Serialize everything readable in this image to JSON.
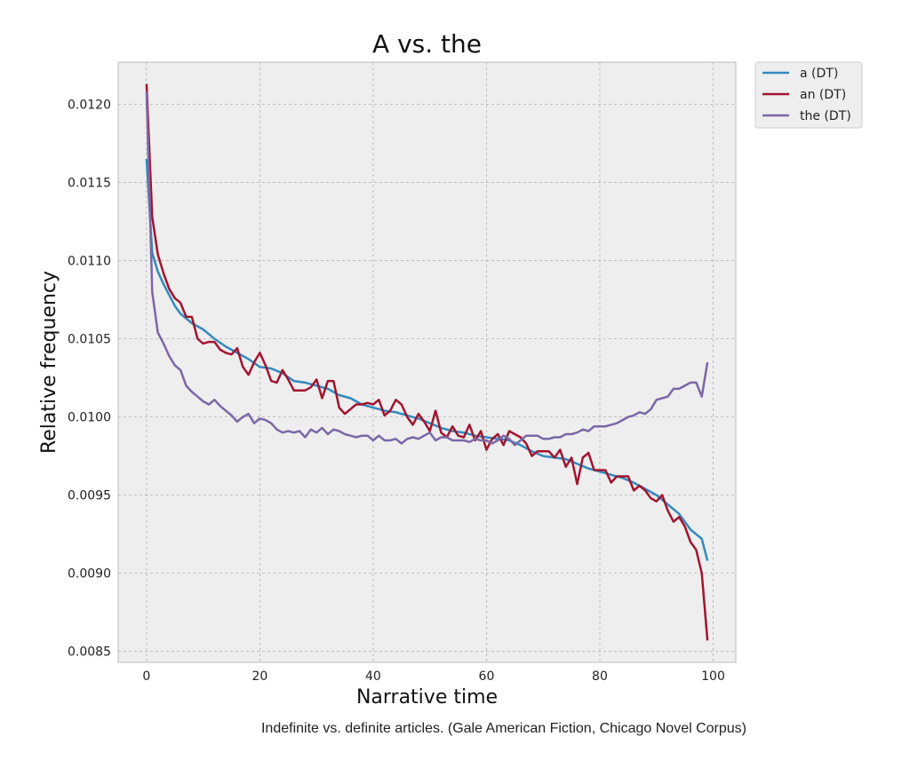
{
  "caption": "Indefinite vs. definite articles. (Gale American Fiction, Chicago Novel Corpus)",
  "chart_data": {
    "type": "line",
    "title": "A vs. the",
    "xlabel": "Narrative time",
    "ylabel": "Relative frequency",
    "xlim": [
      -5,
      104
    ],
    "ylim": [
      0.00843,
      0.01227
    ],
    "xticks": [
      0,
      20,
      40,
      60,
      80,
      100
    ],
    "xtick_labels": [
      "0",
      "20",
      "40",
      "60",
      "80",
      "100"
    ],
    "yticks": [
      0.0085,
      0.009,
      0.0095,
      0.01,
      0.0105,
      0.011,
      0.0115,
      0.012
    ],
    "ytick_labels": [
      "0.0085",
      "0.0090",
      "0.0095",
      "0.0100",
      "0.0105",
      "0.0110",
      "0.0115",
      "0.0120"
    ],
    "grid": true,
    "legend_position": "outside-top-right",
    "series": [
      {
        "name": "a (DT)",
        "color": "#348abd",
        "points": [
          [
            0,
            0.01165
          ],
          [
            1,
            0.01105
          ],
          [
            2,
            0.01093
          ],
          [
            3,
            0.01085
          ],
          [
            4,
            0.01078
          ],
          [
            5,
            0.01071
          ],
          [
            6,
            0.01066
          ],
          [
            8,
            0.0106
          ],
          [
            10,
            0.01056
          ],
          [
            12,
            0.0105
          ],
          [
            14,
            0.01045
          ],
          [
            16,
            0.01041
          ],
          [
            18,
            0.01037
          ],
          [
            20,
            0.01032
          ],
          [
            22,
            0.01031
          ],
          [
            24,
            0.01028
          ],
          [
            26,
            0.01023
          ],
          [
            28,
            0.01022
          ],
          [
            30,
            0.0102
          ],
          [
            32,
            0.01018
          ],
          [
            34,
            0.01014
          ],
          [
            36,
            0.01012
          ],
          [
            38,
            0.01008
          ],
          [
            40,
            0.01006
          ],
          [
            42,
            0.01004
          ],
          [
            44,
            0.01003
          ],
          [
            46,
            0.01001
          ],
          [
            48,
            0.00999
          ],
          [
            50,
            0.00996
          ],
          [
            52,
            0.00993
          ],
          [
            54,
            0.00991
          ],
          [
            56,
            0.0099
          ],
          [
            58,
            0.00988
          ],
          [
            60,
            0.00987
          ],
          [
            62,
            0.00986
          ],
          [
            64,
            0.00985
          ],
          [
            66,
            0.00982
          ],
          [
            68,
            0.00978
          ],
          [
            70,
            0.00975
          ],
          [
            72,
            0.00974
          ],
          [
            74,
            0.00973
          ],
          [
            76,
            0.0097
          ],
          [
            78,
            0.00967
          ],
          [
            80,
            0.00965
          ],
          [
            82,
            0.00963
          ],
          [
            84,
            0.00961
          ],
          [
            86,
            0.00958
          ],
          [
            88,
            0.00954
          ],
          [
            90,
            0.0095
          ],
          [
            92,
            0.00944
          ],
          [
            94,
            0.00938
          ],
          [
            96,
            0.00928
          ],
          [
            98,
            0.00922
          ],
          [
            99,
            0.00908
          ]
        ]
      },
      {
        "name": "an (DT)",
        "color": "#a2142f",
        "points": [
          [
            0,
            0.01213
          ],
          [
            1,
            0.01128
          ],
          [
            2,
            0.01104
          ],
          [
            3,
            0.01092
          ],
          [
            4,
            0.01082
          ],
          [
            5,
            0.01076
          ],
          [
            6,
            0.01073
          ],
          [
            7,
            0.01064
          ],
          [
            8,
            0.01064
          ],
          [
            9,
            0.0105
          ],
          [
            10,
            0.01047
          ],
          [
            11,
            0.01048
          ],
          [
            12,
            0.01048
          ],
          [
            13,
            0.01043
          ],
          [
            14,
            0.01041
          ],
          [
            15,
            0.0104
          ],
          [
            16,
            0.01044
          ],
          [
            17,
            0.01032
          ],
          [
            18,
            0.01027
          ],
          [
            19,
            0.01035
          ],
          [
            20,
            0.01041
          ],
          [
            21,
            0.01033
          ],
          [
            22,
            0.01023
          ],
          [
            23,
            0.01022
          ],
          [
            24,
            0.0103
          ],
          [
            25,
            0.01024
          ],
          [
            26,
            0.01017
          ],
          [
            27,
            0.01017
          ],
          [
            28,
            0.01017
          ],
          [
            29,
            0.01019
          ],
          [
            30,
            0.01024
          ],
          [
            31,
            0.01012
          ],
          [
            32,
            0.01023
          ],
          [
            33,
            0.01023
          ],
          [
            34,
            0.01006
          ],
          [
            35,
            0.01002
          ],
          [
            36,
            0.01005
          ],
          [
            37,
            0.01008
          ],
          [
            38,
            0.01008
          ],
          [
            39,
            0.01009
          ],
          [
            40,
            0.01008
          ],
          [
            41,
            0.01011
          ],
          [
            42,
            0.01001
          ],
          [
            43,
            0.01004
          ],
          [
            44,
            0.01011
          ],
          [
            45,
            0.01008
          ],
          [
            46,
            0.01
          ],
          [
            47,
            0.00995
          ],
          [
            48,
            0.01002
          ],
          [
            49,
            0.00997
          ],
          [
            50,
            0.00991
          ],
          [
            51,
            0.01004
          ],
          [
            52,
            0.0099
          ],
          [
            53,
            0.00987
          ],
          [
            54,
            0.00994
          ],
          [
            55,
            0.00988
          ],
          [
            56,
            0.00987
          ],
          [
            57,
            0.00995
          ],
          [
            58,
            0.00985
          ],
          [
            59,
            0.00991
          ],
          [
            60,
            0.00979
          ],
          [
            61,
            0.00986
          ],
          [
            62,
            0.00989
          ],
          [
            63,
            0.00982
          ],
          [
            64,
            0.00991
          ],
          [
            65,
            0.00989
          ],
          [
            66,
            0.00987
          ],
          [
            67,
            0.00983
          ],
          [
            68,
            0.00975
          ],
          [
            69,
            0.00978
          ],
          [
            70,
            0.00978
          ],
          [
            71,
            0.00978
          ],
          [
            72,
            0.00974
          ],
          [
            73,
            0.00979
          ],
          [
            74,
            0.00968
          ],
          [
            75,
            0.00974
          ],
          [
            76,
            0.00957
          ],
          [
            77,
            0.00974
          ],
          [
            78,
            0.00977
          ],
          [
            79,
            0.00966
          ],
          [
            80,
            0.00966
          ],
          [
            81,
            0.00966
          ],
          [
            82,
            0.00958
          ],
          [
            83,
            0.00962
          ],
          [
            84,
            0.00962
          ],
          [
            85,
            0.00962
          ],
          [
            86,
            0.00953
          ],
          [
            87,
            0.00956
          ],
          [
            88,
            0.00953
          ],
          [
            89,
            0.00948
          ],
          [
            90,
            0.00946
          ],
          [
            91,
            0.0095
          ],
          [
            92,
            0.0094
          ],
          [
            93,
            0.00933
          ],
          [
            94,
            0.00936
          ],
          [
            95,
            0.0093
          ],
          [
            96,
            0.0092
          ],
          [
            97,
            0.00915
          ],
          [
            98,
            0.009
          ],
          [
            99,
            0.00857
          ]
        ]
      },
      {
        "name": "the (DT)",
        "color": "#7a68a6",
        "points": [
          [
            0,
            0.01208
          ],
          [
            1,
            0.0108
          ],
          [
            2,
            0.01054
          ],
          [
            3,
            0.01047
          ],
          [
            4,
            0.01039
          ],
          [
            5,
            0.01033
          ],
          [
            6,
            0.0103
          ],
          [
            7,
            0.0102
          ],
          [
            8,
            0.01016
          ],
          [
            9,
            0.01013
          ],
          [
            10,
            0.0101
          ],
          [
            11,
            0.01008
          ],
          [
            12,
            0.01011
          ],
          [
            13,
            0.01007
          ],
          [
            14,
            0.01004
          ],
          [
            15,
            0.01001
          ],
          [
            16,
            0.00997
          ],
          [
            17,
            0.01
          ],
          [
            18,
            0.01002
          ],
          [
            19,
            0.00996
          ],
          [
            20,
            0.00999
          ],
          [
            21,
            0.00998
          ],
          [
            22,
            0.00996
          ],
          [
            23,
            0.00992
          ],
          [
            24,
            0.0099
          ],
          [
            25,
            0.00991
          ],
          [
            26,
            0.0099
          ],
          [
            27,
            0.00991
          ],
          [
            28,
            0.00987
          ],
          [
            29,
            0.00992
          ],
          [
            30,
            0.0099
          ],
          [
            31,
            0.00993
          ],
          [
            32,
            0.00989
          ],
          [
            33,
            0.00992
          ],
          [
            34,
            0.00991
          ],
          [
            35,
            0.00989
          ],
          [
            36,
            0.00988
          ],
          [
            37,
            0.00987
          ],
          [
            38,
            0.00988
          ],
          [
            39,
            0.00988
          ],
          [
            40,
            0.00985
          ],
          [
            41,
            0.00988
          ],
          [
            42,
            0.00985
          ],
          [
            43,
            0.00985
          ],
          [
            44,
            0.00986
          ],
          [
            45,
            0.00983
          ],
          [
            46,
            0.00986
          ],
          [
            47,
            0.00987
          ],
          [
            48,
            0.00986
          ],
          [
            49,
            0.00988
          ],
          [
            50,
            0.0099
          ],
          [
            51,
            0.00985
          ],
          [
            52,
            0.00987
          ],
          [
            53,
            0.00987
          ],
          [
            54,
            0.00985
          ],
          [
            55,
            0.00985
          ],
          [
            56,
            0.00985
          ],
          [
            57,
            0.00984
          ],
          [
            58,
            0.00986
          ],
          [
            59,
            0.00985
          ],
          [
            60,
            0.00985
          ],
          [
            61,
            0.00983
          ],
          [
            62,
            0.00985
          ],
          [
            63,
            0.00988
          ],
          [
            64,
            0.00986
          ],
          [
            65,
            0.00982
          ],
          [
            66,
            0.00985
          ],
          [
            67,
            0.00988
          ],
          [
            68,
            0.00988
          ],
          [
            69,
            0.00988
          ],
          [
            70,
            0.00986
          ],
          [
            71,
            0.00986
          ],
          [
            72,
            0.00987
          ],
          [
            73,
            0.00987
          ],
          [
            74,
            0.00989
          ],
          [
            75,
            0.00989
          ],
          [
            76,
            0.0099
          ],
          [
            77,
            0.00992
          ],
          [
            78,
            0.00991
          ],
          [
            79,
            0.00994
          ],
          [
            80,
            0.00994
          ],
          [
            81,
            0.00994
          ],
          [
            82,
            0.00995
          ],
          [
            83,
            0.00996
          ],
          [
            84,
            0.00998
          ],
          [
            85,
            0.01
          ],
          [
            86,
            0.01001
          ],
          [
            87,
            0.01003
          ],
          [
            88,
            0.01002
          ],
          [
            89,
            0.01005
          ],
          [
            90,
            0.01011
          ],
          [
            91,
            0.01012
          ],
          [
            92,
            0.01013
          ],
          [
            93,
            0.01018
          ],
          [
            94,
            0.01018
          ],
          [
            95,
            0.0102
          ],
          [
            96,
            0.01022
          ],
          [
            97,
            0.01022
          ],
          [
            98,
            0.01013
          ],
          [
            99,
            0.01035
          ]
        ]
      }
    ]
  }
}
